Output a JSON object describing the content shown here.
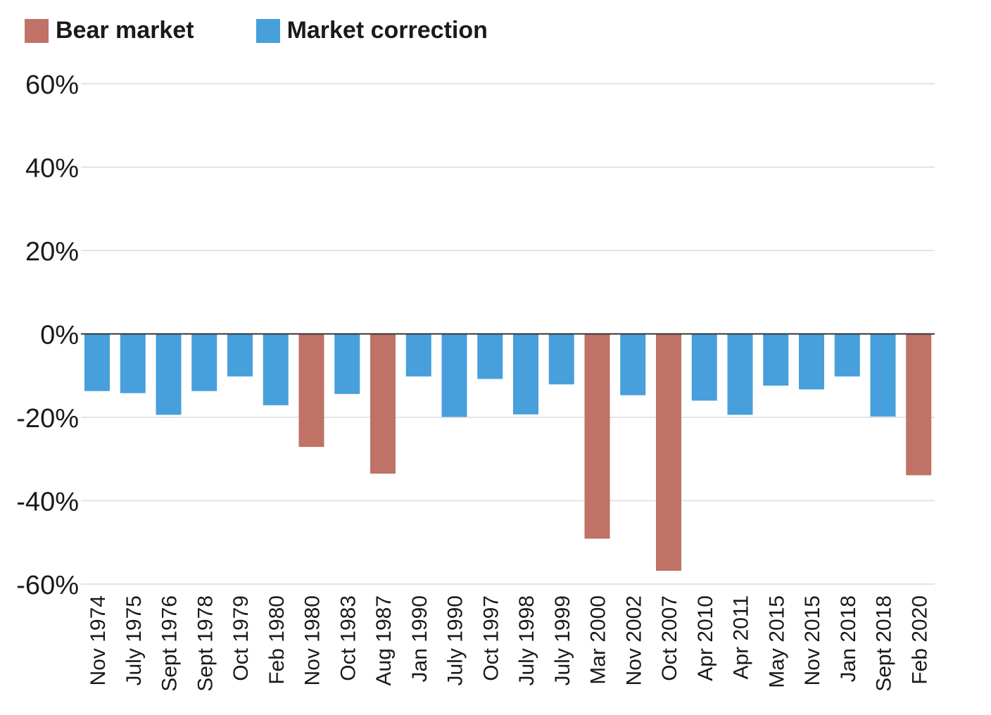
{
  "chart_data": {
    "type": "bar",
    "title": "",
    "xlabel": "",
    "ylabel": "",
    "ylim": [
      -60,
      60
    ],
    "yticks": [
      60,
      40,
      20,
      0,
      -20,
      -40,
      -60
    ],
    "ytick_labels": [
      "60%",
      "40%",
      "20%",
      "0%",
      "-20%",
      "-40%",
      "-60%"
    ],
    "legend": [
      {
        "name": "Bear market",
        "color": "#bf7265"
      },
      {
        "name": "Market correction",
        "color": "#479fdc"
      }
    ],
    "categories": [
      "Nov 1974",
      "July 1975",
      "Sept 1976",
      "Sept 1978",
      "Oct 1979",
      "Feb 1980",
      "Nov 1980",
      "Oct 1983",
      "Aug 1987",
      "Jan 1990",
      "July 1990",
      "Oct 1997",
      "July 1998",
      "July 1999",
      "Mar 2000",
      "Nov 2002",
      "Oct 2007",
      "Apr 2010",
      "Apr 2011",
      "May 2015",
      "Nov 2015",
      "Jan 2018",
      "Sept 2018",
      "Feb 2020"
    ],
    "values": [
      -13.7,
      -14.2,
      -19.4,
      -13.7,
      -10.2,
      -17.1,
      -27.1,
      -14.4,
      -33.5,
      -10.2,
      -19.9,
      -10.8,
      -19.3,
      -12.1,
      -49.1,
      -14.7,
      -56.8,
      -16.0,
      -19.4,
      -12.4,
      -13.3,
      -10.2,
      -19.8,
      -33.9
    ],
    "types": [
      "correction",
      "correction",
      "correction",
      "correction",
      "correction",
      "correction",
      "bear",
      "correction",
      "bear",
      "correction",
      "correction",
      "correction",
      "correction",
      "correction",
      "bear",
      "correction",
      "bear",
      "correction",
      "correction",
      "correction",
      "correction",
      "correction",
      "correction",
      "bear"
    ],
    "colors": {
      "bear": "#bf7265",
      "correction": "#479fdc"
    }
  }
}
